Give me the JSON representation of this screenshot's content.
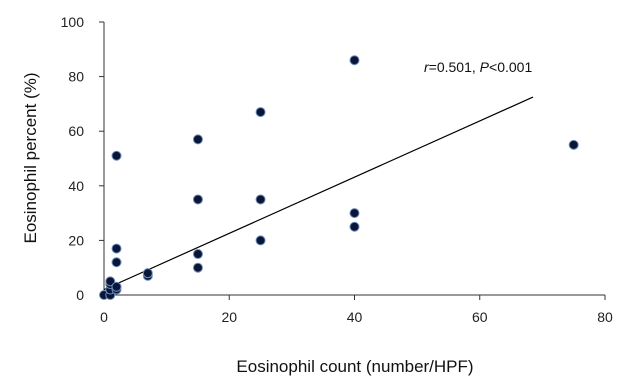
{
  "chart_data": {
    "type": "scatter",
    "title": "",
    "xlabel": "Eosinophil  count (number/HPF)",
    "ylabel": "Eosinophil  percent (%)",
    "xlim": [
      0,
      80
    ],
    "ylim": [
      0,
      100
    ],
    "xticks": [
      0,
      20,
      40,
      60,
      80
    ],
    "yticks": [
      0,
      20,
      40,
      60,
      80,
      100
    ],
    "grid": false,
    "legend": "none",
    "point_color": "#0b1636",
    "point_edge_color": "#6d8fc0",
    "line_color": "#000000",
    "points": [
      {
        "x": 0,
        "y": 0
      },
      {
        "x": 1,
        "y": 0
      },
      {
        "x": 1,
        "y": 2
      },
      {
        "x": 1,
        "y": 4
      },
      {
        "x": 1,
        "y": 5
      },
      {
        "x": 2,
        "y": 2
      },
      {
        "x": 2,
        "y": 3
      },
      {
        "x": 2,
        "y": 12
      },
      {
        "x": 2,
        "y": 17
      },
      {
        "x": 2,
        "y": 51
      },
      {
        "x": 7,
        "y": 7
      },
      {
        "x": 7,
        "y": 8
      },
      {
        "x": 15,
        "y": 10
      },
      {
        "x": 15,
        "y": 15
      },
      {
        "x": 15,
        "y": 35
      },
      {
        "x": 15,
        "y": 57
      },
      {
        "x": 25,
        "y": 20
      },
      {
        "x": 25,
        "y": 35
      },
      {
        "x": 25,
        "y": 67
      },
      {
        "x": 40,
        "y": 25
      },
      {
        "x": 40,
        "y": 30
      },
      {
        "x": 40,
        "y": 86
      },
      {
        "x": 75,
        "y": 55
      }
    ],
    "trendline": {
      "x": [
        0,
        68.5
      ],
      "y": [
        2,
        72.5
      ]
    },
    "annotation": {
      "r_symbol": "r",
      "r_text": "=0.501, ",
      "p_symbol": "P",
      "p_text": "<0.001"
    }
  }
}
